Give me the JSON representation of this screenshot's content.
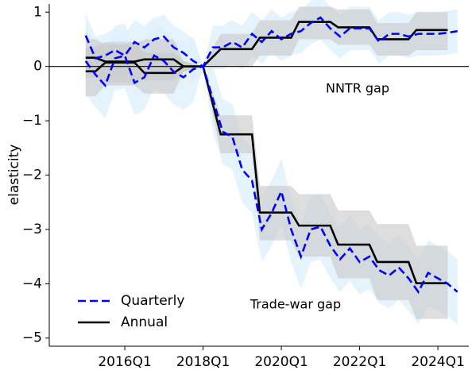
{
  "chart_data": {
    "type": "line",
    "y_label": "elasticity",
    "xlim": [
      2014.07,
      2024.79
    ],
    "ylim": [
      -5.15,
      1.15
    ],
    "xticks": [
      {
        "value": 2016,
        "label": "2016Q1"
      },
      {
        "value": 2018,
        "label": "2018Q1"
      },
      {
        "value": 2020,
        "label": "2020Q1"
      },
      {
        "value": 2022,
        "label": "2022Q1"
      },
      {
        "value": 2024,
        "label": "2024Q1"
      }
    ],
    "yticks": [
      {
        "value": -5,
        "label": "−5"
      },
      {
        "value": -4,
        "label": "−4"
      },
      {
        "value": -3,
        "label": "−3"
      },
      {
        "value": -2,
        "label": "−2"
      },
      {
        "value": -1,
        "label": "−1"
      },
      0,
      1
    ],
    "reference_line": 0,
    "annotations": [
      "NNTR gap",
      "Trade-war gap"
    ],
    "legend": "lower left",
    "series": [
      {
        "name": "Quarterly",
        "color": "#0000ff",
        "dashed": true,
        "band_color": "#dff0fc",
        "groups": [
          {
            "x": [
              2015,
              2015.25,
              2015.5,
              2015.75,
              2016,
              2016.25,
              2016.5,
              2016.75,
              2017,
              2017.25,
              2017.5,
              2017.75,
              2018,
              2018.25,
              2018.5,
              2018.75,
              2019,
              2019.25,
              2019.5,
              2019.75,
              2020,
              2020.25,
              2020.5,
              2020.75,
              2021,
              2021.25,
              2021.5,
              2021.75,
              2022,
              2022.25,
              2022.5,
              2022.75,
              2023,
              2023.25,
              2023.5,
              2023.75,
              2024,
              2024.25,
              2024.5
            ],
            "values": [
              0.57,
              0.15,
              0.2,
              0.3,
              0.2,
              0.45,
              0.35,
              0.5,
              0.55,
              0.35,
              0.25,
              0.1,
              0,
              0.35,
              0.35,
              0.45,
              0.35,
              0.6,
              0.45,
              0.65,
              0.5,
              0.6,
              0.65,
              0.8,
              0.9,
              0.7,
              0.55,
              0.7,
              0.7,
              0.7,
              0.45,
              0.6,
              0.6,
              0.55,
              0.6,
              0.6,
              0.6,
              0.62,
              0.65
            ],
            "lower": [
              0.17,
              -0.25,
              -0.2,
              -0.1,
              -0.2,
              0.05,
              -0.05,
              0.1,
              0.15,
              -0.05,
              -0.15,
              -0.3,
              0,
              -0.05,
              -0.05,
              0.05,
              -0.05,
              0.2,
              0.05,
              0.25,
              0.1,
              0.2,
              0.25,
              0.4,
              0.5,
              0.3,
              0.15,
              0.3,
              0.3,
              0.3,
              0.05,
              0.2,
              0.2,
              0.15,
              0.2,
              0.2,
              0.2,
              0.22,
              0.25
            ],
            "upper": [
              0.97,
              0.55,
              0.6,
              0.7,
              0.6,
              0.85,
              0.75,
              0.9,
              0.95,
              0.75,
              0.65,
              0.5,
              0,
              0.75,
              0.75,
              0.85,
              0.75,
              1.0,
              0.85,
              1.05,
              0.9,
              1.0,
              1.05,
              1.2,
              1.3,
              1.1,
              0.95,
              1.1,
              1.1,
              1.1,
              0.85,
              1.0,
              1.0,
              0.95,
              1.0,
              1.0,
              1.0,
              1.02,
              1.05
            ]
          },
          {
            "x": [
              2015,
              2015.25,
              2015.5,
              2015.75,
              2016,
              2016.25,
              2016.5,
              2016.75,
              2017,
              2017.25,
              2017.5,
              2017.75,
              2018,
              2018.25,
              2018.5,
              2018.75,
              2019,
              2019.25,
              2019.5,
              2019.75,
              2020,
              2020.25,
              2020.5,
              2020.75,
              2021,
              2021.25,
              2021.5,
              2021.75,
              2022,
              2022.25,
              2022.5,
              2022.75,
              2023,
              2023.25,
              2023.5,
              2023.75,
              2024,
              2024.25,
              2024.5
            ],
            "values": [
              0.1,
              -0.15,
              -0.35,
              0.15,
              0.2,
              -0.3,
              -0.2,
              0.2,
              0.1,
              -0.1,
              -0.2,
              -0.05,
              0,
              -0.6,
              -1.2,
              -1.3,
              -1.9,
              -2.1,
              -3.0,
              -2.7,
              -2.3,
              -3.0,
              -3.5,
              -3.0,
              -2.95,
              -3.3,
              -3.55,
              -3.35,
              -3.6,
              -3.5,
              -3.75,
              -3.85,
              -3.7,
              -3.9,
              -4.15,
              -3.8,
              -3.9,
              -4.0,
              -4.15
            ],
            "lower": [
              -0.5,
              -0.75,
              -0.95,
              -0.45,
              -0.4,
              -0.9,
              -0.8,
              -0.4,
              -0.5,
              -0.7,
              -0.8,
              -0.65,
              0,
              -1.2,
              -1.8,
              -1.9,
              -2.5,
              -2.7,
              -3.6,
              -3.3,
              -2.9,
              -3.6,
              -4.1,
              -3.6,
              -3.55,
              -3.9,
              -4.15,
              -3.95,
              -4.2,
              -4.1,
              -4.35,
              -4.45,
              -4.3,
              -4.5,
              -4.75,
              -4.4,
              -4.5,
              -4.6,
              -4.75
            ],
            "upper": [
              0.7,
              0.45,
              0.25,
              0.75,
              0.8,
              0.3,
              0.4,
              0.8,
              0.7,
              0.5,
              0.4,
              0.55,
              0,
              0,
              -0.6,
              -0.7,
              -1.3,
              -1.5,
              -2.4,
              -2.1,
              -1.7,
              -2.4,
              -2.9,
              -2.4,
              -2.35,
              -2.7,
              -2.95,
              -2.75,
              -3.0,
              -2.9,
              -3.15,
              -3.25,
              -3.1,
              -3.3,
              -3.55,
              -3.2,
              -3.3,
              -3.4,
              -3.55
            ]
          }
        ]
      },
      {
        "name": "Annual",
        "color": "#000000",
        "dashed": false,
        "band_color": "#c8c8c8",
        "groups": [
          {
            "x": [
              2015,
              2015.25,
              2015.5,
              2016.25,
              2016.5,
              2017.25,
              2017.5,
              2018,
              2018.45,
              2019.25,
              2019.45,
              2020.25,
              2020.45,
              2021.25,
              2021.45,
              2022.25,
              2022.45,
              2023.25,
              2023.45,
              2024.25
            ],
            "values": [
              -0.09,
              -0.09,
              0.07,
              0.07,
              -0.12,
              -0.12,
              0,
              0,
              0.32,
              0.32,
              0.53,
              0.53,
              0.82,
              0.82,
              0.72,
              0.72,
              0.5,
              0.5,
              0.67,
              0.67
            ],
            "lower": [
              -0.55,
              -0.55,
              -0.35,
              -0.35,
              -0.5,
              -0.5,
              -0.1,
              0,
              0.0,
              0.0,
              0.2,
              0.2,
              0.5,
              0.5,
              0.4,
              0.4,
              0.2,
              0.2,
              0.3,
              0.3
            ],
            "upper": [
              0.35,
              0.35,
              0.45,
              0.45,
              0.25,
              0.25,
              0.1,
              0,
              0.6,
              0.6,
              0.85,
              0.85,
              1.1,
              1.1,
              1.05,
              1.05,
              0.8,
              0.8,
              1.0,
              1.0
            ]
          },
          {
            "x": [
              2015,
              2015.25,
              2015.5,
              2016.25,
              2016.5,
              2017.25,
              2017.5,
              2018,
              2018.45,
              2019.25,
              2019.45,
              2020.25,
              2020.45,
              2021.25,
              2021.45,
              2022.25,
              2022.45,
              2023.25,
              2023.45,
              2024.25
            ],
            "values": [
              0.16,
              0.16,
              0.09,
              0.09,
              0.13,
              0.13,
              0,
              0,
              -1.25,
              -1.25,
              -2.69,
              -2.69,
              -2.93,
              -2.93,
              -3.28,
              -3.28,
              -3.6,
              -3.6,
              -3.99,
              -3.99
            ],
            "lower": [
              -0.2,
              -0.2,
              -0.3,
              -0.3,
              -0.25,
              -0.25,
              -0.1,
              0,
              -1.6,
              -1.6,
              -3.2,
              -3.2,
              -3.5,
              -3.5,
              -3.9,
              -3.9,
              -4.3,
              -4.3,
              -4.65,
              -4.65
            ],
            "upper": [
              0.5,
              0.5,
              0.4,
              0.4,
              0.5,
              0.5,
              0.1,
              0,
              -0.9,
              -0.9,
              -2.2,
              -2.2,
              -2.35,
              -2.35,
              -2.65,
              -2.65,
              -2.9,
              -2.9,
              -3.3,
              -3.3
            ]
          }
        ]
      }
    ]
  }
}
